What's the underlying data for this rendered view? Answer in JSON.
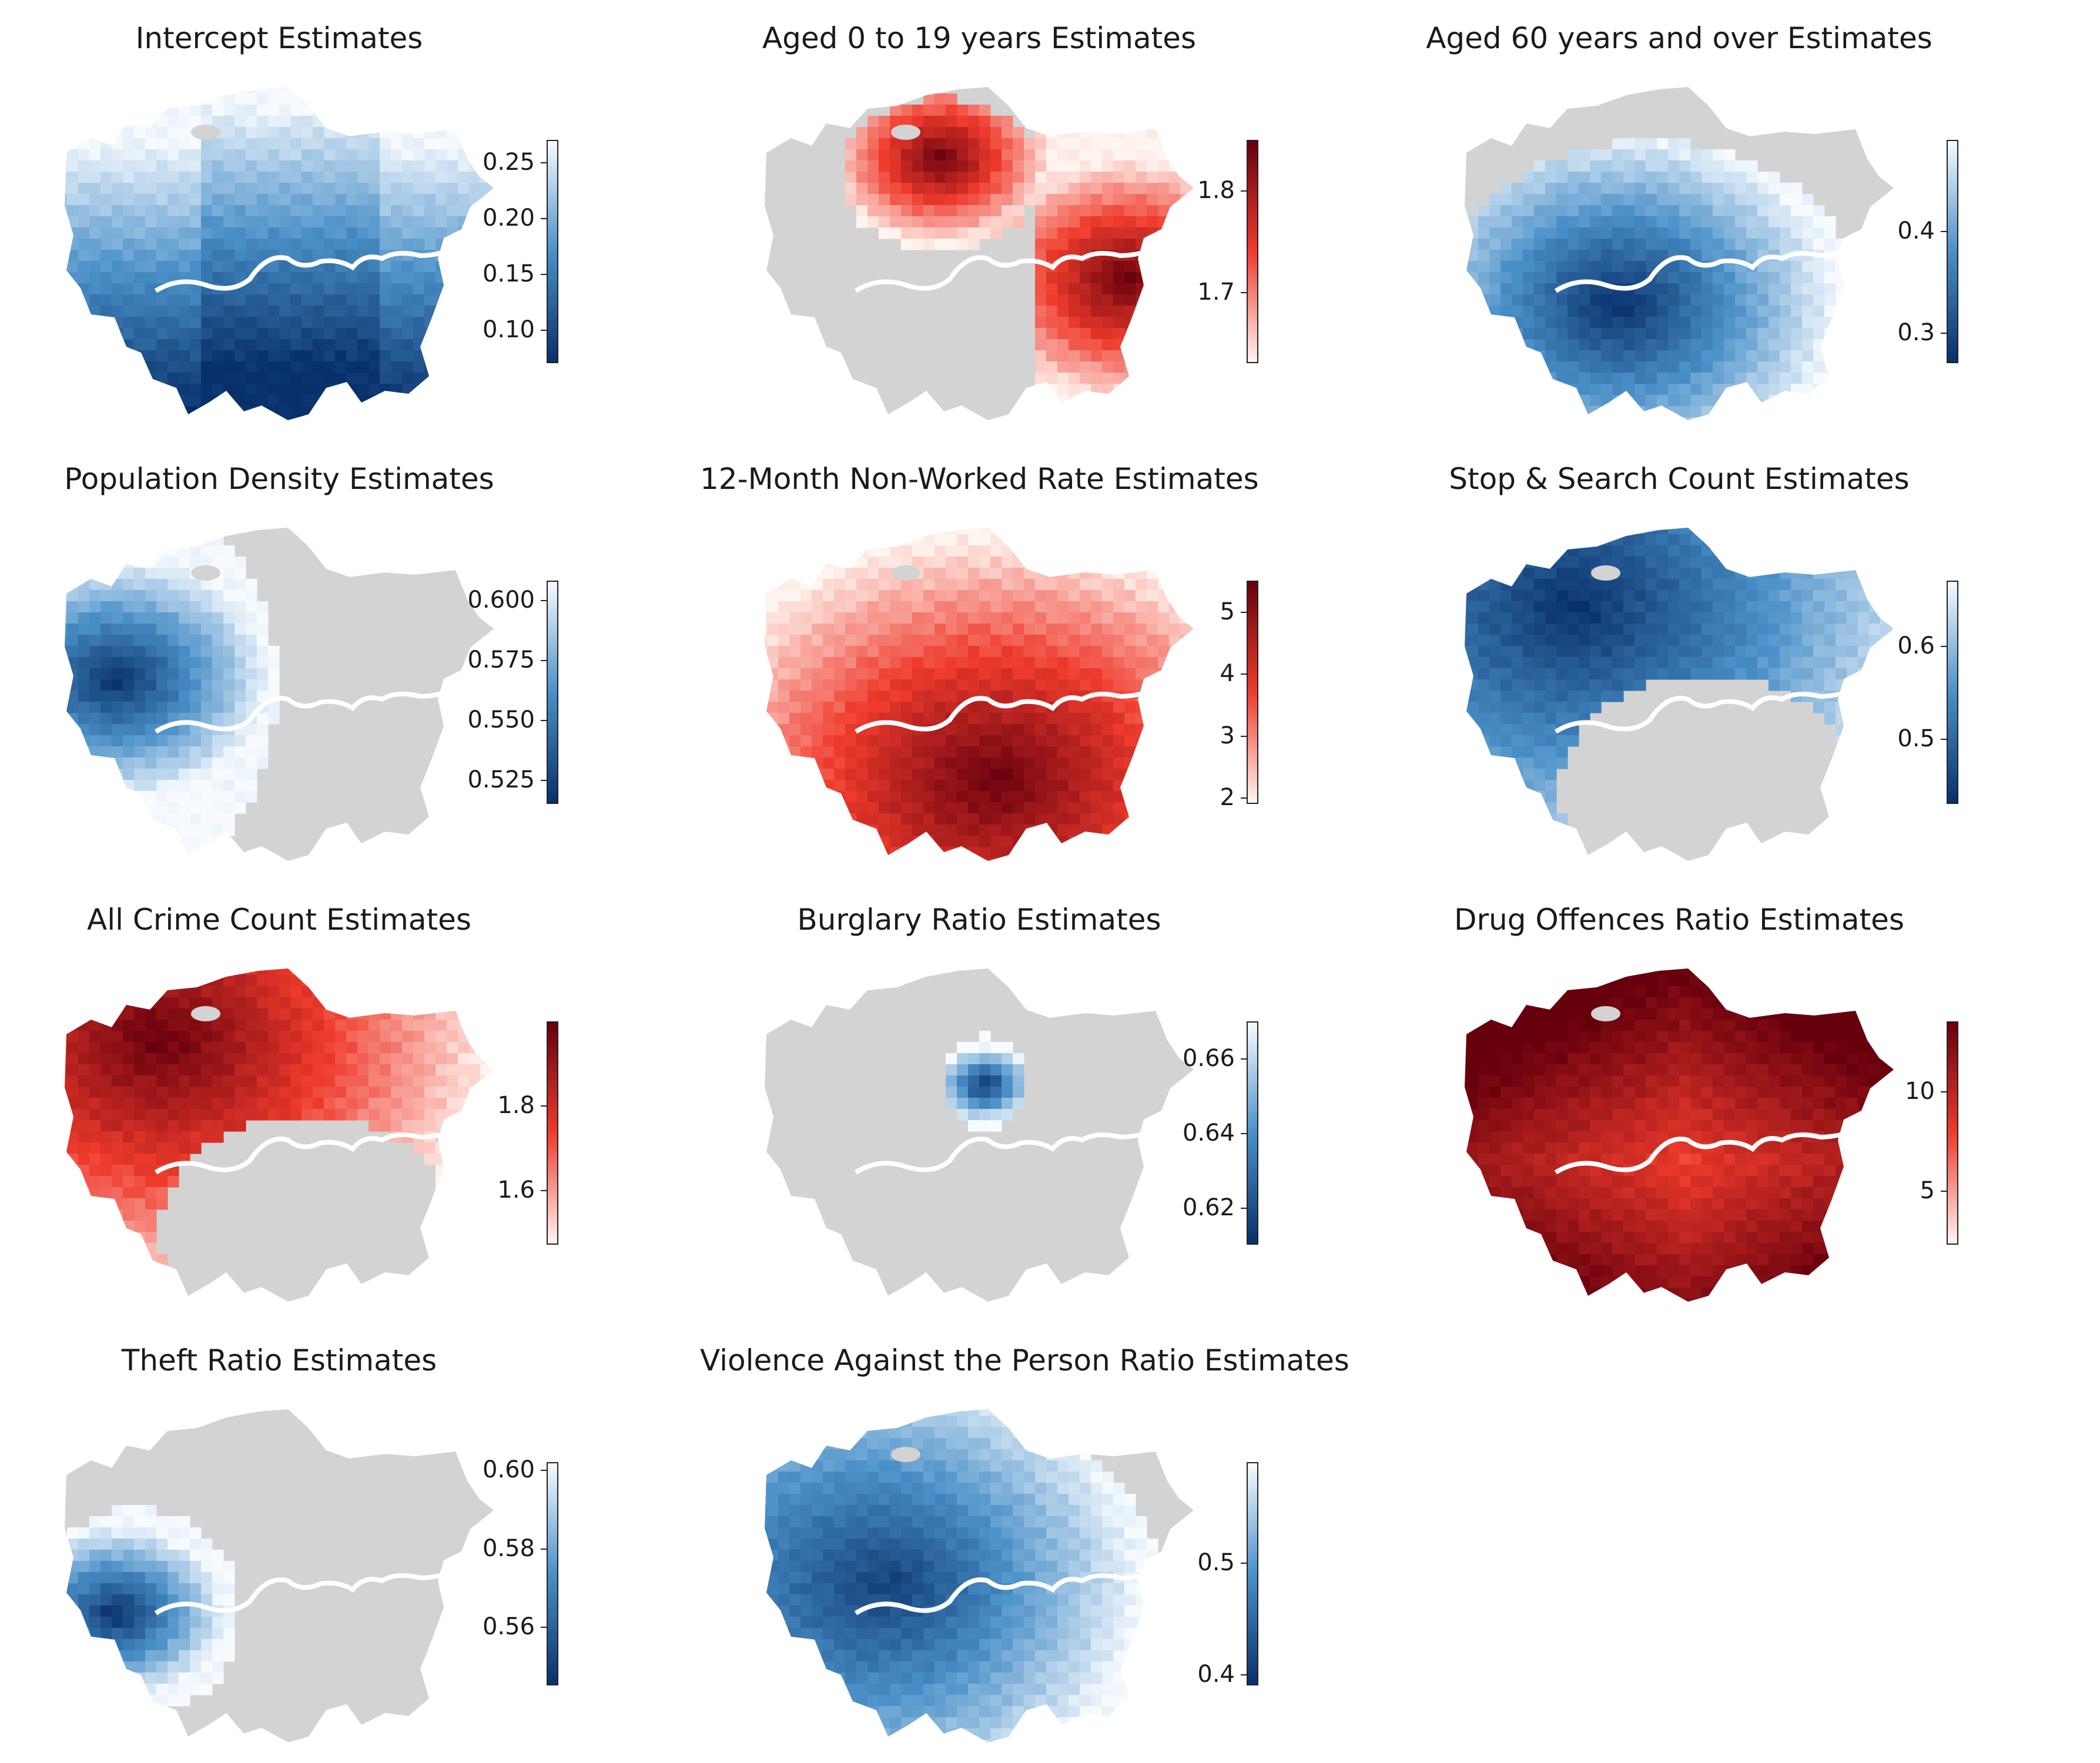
{
  "figure": {
    "panels": [
      {
        "title": "Intercept Estimates",
        "cmap": "Blues_r",
        "vmin": 0.07,
        "vmax": 0.27,
        "ticks": [
          0.25,
          0.2,
          0.15,
          0.1
        ],
        "tick_labels": [
          "0.25",
          "0.20",
          "0.15",
          "0.10"
        ],
        "coverage": "full"
      },
      {
        "title": "Aged 0 to 19 years Estimates",
        "cmap": "Reds",
        "vmin": 1.63,
        "vmax": 1.85,
        "ticks": [
          1.8,
          1.7
        ],
        "tick_labels": [
          "1.8",
          "1.7"
        ],
        "coverage": "north-and-east"
      },
      {
        "title": "Aged 60 years and over Estimates",
        "cmap": "Blues_r",
        "vmin": 0.27,
        "vmax": 0.49,
        "ticks": [
          0.4,
          0.3
        ],
        "tick_labels": [
          "0.4",
          "0.3"
        ],
        "coverage": "south-west"
      },
      {
        "title": "Population Density Estimates",
        "cmap": "Blues_r",
        "vmin": 0.515,
        "vmax": 0.608,
        "ticks": [
          0.6,
          0.575,
          0.55,
          0.525
        ],
        "tick_labels": [
          "0.600",
          "0.575",
          "0.550",
          "0.525"
        ],
        "coverage": "west"
      },
      {
        "title": "12-Month Non-Worked Rate Estimates",
        "cmap": "Reds",
        "vmin": 1.9,
        "vmax": 5.5,
        "ticks": [
          5,
          4,
          3,
          2
        ],
        "tick_labels": [
          "5",
          "4",
          "3",
          "2"
        ],
        "coverage": "full"
      },
      {
        "title": "Stop & Search Count Estimates",
        "cmap": "Blues_r",
        "vmin": 0.43,
        "vmax": 0.67,
        "ticks": [
          0.6,
          0.5
        ],
        "tick_labels": [
          "0.6",
          "0.5"
        ],
        "coverage": "ring-north-west"
      },
      {
        "title": "All Crime Count Estimates",
        "cmap": "Reds",
        "vmin": 1.47,
        "vmax": 2.0,
        "ticks": [
          1.8,
          1.6
        ],
        "tick_labels": [
          "1.8",
          "1.6"
        ],
        "coverage": "ring-north-west"
      },
      {
        "title": "Burglary Ratio Estimates",
        "cmap": "Blues_r",
        "vmin": 0.61,
        "vmax": 0.67,
        "ticks": [
          0.66,
          0.64,
          0.62
        ],
        "tick_labels": [
          "0.66",
          "0.64",
          "0.62"
        ],
        "coverage": "central-spot"
      },
      {
        "title": "Drug Offences Ratio Estimates",
        "cmap": "Reds",
        "vmin": 2.3,
        "vmax": 13.5,
        "ticks": [
          10,
          5
        ],
        "tick_labels": [
          "10",
          "5"
        ],
        "coverage": "full"
      },
      {
        "title": "Theft Ratio Estimates",
        "cmap": "Blues_r",
        "vmin": 0.545,
        "vmax": 0.602,
        "ticks": [
          0.6,
          0.58,
          0.56
        ],
        "tick_labels": [
          "0.60",
          "0.58",
          "0.56"
        ],
        "coverage": "far-west"
      },
      {
        "title": "Violence Against the Person Ratio Estimates",
        "cmap": "Blues_r",
        "vmin": 0.39,
        "vmax": 0.59,
        "ticks": [
          0.5,
          0.4
        ],
        "tick_labels": [
          "0.5",
          "0.4"
        ],
        "coverage": "west-and-south"
      }
    ]
  },
  "colors": {
    "insignificant": "#d3d3d3",
    "river": "#ffffff",
    "blues_dark": "#08306b",
    "blues_mid": "#4a90c8",
    "blues_light": "#f7fbff",
    "reds_dark": "#67000d",
    "reds_mid": "#ef3b2c",
    "reds_light": "#fff5f0"
  }
}
